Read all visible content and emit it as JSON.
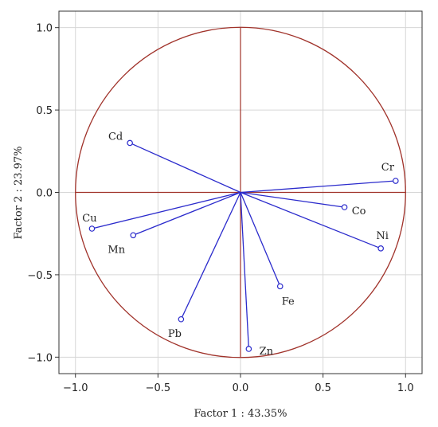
{
  "chart_data": {
    "type": "scatter",
    "subtype": "pca-loading-circle",
    "xlabel": "Factor 1 : 43.35%",
    "ylabel": "Factor 2 : 23.97%",
    "xlim": [
      -1.1,
      1.1
    ],
    "ylim": [
      -1.1,
      1.1
    ],
    "xticks": [
      -1.0,
      -0.5,
      0.0,
      0.5,
      1.0
    ],
    "yticks": [
      -1.0,
      -0.5,
      0.0,
      0.5,
      1.0
    ],
    "xtick_labels": [
      "−1.0",
      "−0.5",
      "0.0",
      "0.5",
      "1.0"
    ],
    "ytick_labels": [
      "−1.0",
      "−0.5",
      "0.0",
      "0.5",
      "1.0"
    ],
    "grid": true,
    "unit_circle": true,
    "colors": {
      "vectors": "#2b2bcc",
      "circle": "#a0322a",
      "grid": "#d6d6d6"
    },
    "points": [
      {
        "label": "Cd",
        "x": -0.67,
        "y": 0.3
      },
      {
        "label": "Cr",
        "x": 0.94,
        "y": 0.07
      },
      {
        "label": "Co",
        "x": 0.63,
        "y": -0.09
      },
      {
        "label": "Ni",
        "x": 0.85,
        "y": -0.34
      },
      {
        "label": "Cu",
        "x": -0.9,
        "y": -0.22
      },
      {
        "label": "Mn",
        "x": -0.65,
        "y": -0.26
      },
      {
        "label": "Fe",
        "x": 0.24,
        "y": -0.57
      },
      {
        "label": "Pb",
        "x": -0.36,
        "y": -0.77
      },
      {
        "label": "Zn",
        "x": 0.05,
        "y": -0.95
      }
    ]
  }
}
